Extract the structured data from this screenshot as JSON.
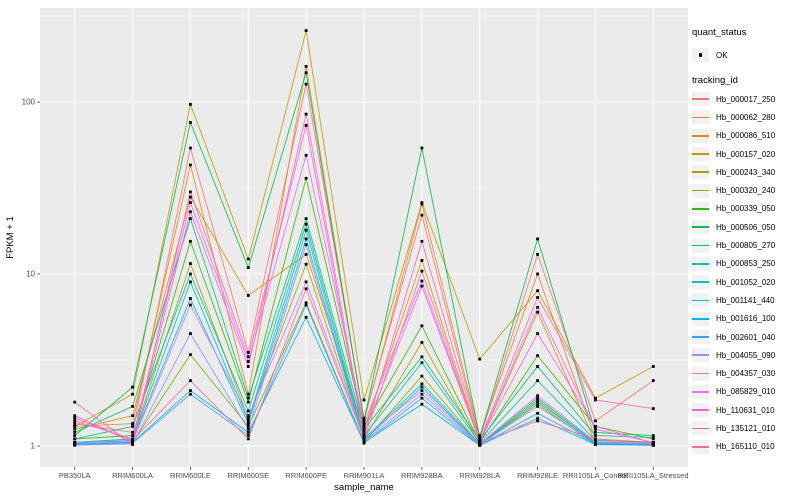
{
  "figure": {
    "background": "#FFFFFF",
    "panel_bg": "#EBEBEB",
    "grid_major_color": "#FFFFFF",
    "grid_minor_color": "#FFFFFF",
    "tick_color": "#333333",
    "axis_text_color": "#4D4D4D",
    "axis_title_color": "#000000",
    "point_color": "#000000",
    "legend_key_bg": "#F2F2F2"
  },
  "axes": {
    "x": {
      "title": "sample_name"
    },
    "y": {
      "title": "FPKM + 1",
      "tick_labels": [
        "1",
        "10",
        "100"
      ]
    }
  },
  "legend": {
    "quant_status": {
      "title": "quant_status",
      "items": [
        {
          "label": "OK",
          "marker": "black-point"
        }
      ]
    },
    "tracking": {
      "title": "tracking_id"
    }
  },
  "chart_data": {
    "type": "line",
    "title": "",
    "xlabel": "sample_name",
    "ylabel": "FPKM + 1",
    "y_scale": "log10",
    "y_ticks": [
      1,
      10,
      100
    ],
    "y_minor_ticks": [
      3.162,
      31.62,
      316.2
    ],
    "ylim_log10": [
      -0.122,
      2.547
    ],
    "grid": true,
    "legend_position": "right",
    "point_marker": "small-black-square",
    "quant_status_all": "OK",
    "categories": [
      "PB350LA",
      "RRIM600LA",
      "RRIM600LE",
      "RRIM600SE",
      "RRIM600PE",
      "RRIM901LA",
      "RRIM928BA",
      "RRIM928LA",
      "RRIM928LE",
      "RRII105LA_Control",
      "RRII105LA_Stressed"
    ],
    "series": [
      {
        "name": "Hb_000017_250",
        "color": "#F8766D",
        "values": [
          1.35,
          1.2,
          54,
          3.5,
          127,
          1.45,
          22,
          1.1,
          13,
          1.4,
          2.4
        ]
      },
      {
        "name": "Hb_000062_280",
        "color": "#EA8331",
        "values": [
          1.3,
          1.35,
          43,
          2.0,
          161,
          1.4,
          25.5,
          1.15,
          10,
          1.1,
          1.05
        ]
      },
      {
        "name": "Hb_000086_510",
        "color": "#D89000",
        "values": [
          1.25,
          1.5,
          28,
          7.5,
          13,
          1.25,
          12,
          1.05,
          6.0,
          1.05,
          1.02
        ]
      },
      {
        "name": "Hb_000157_020",
        "color": "#C09B00",
        "values": [
          1.3,
          2.0,
          97,
          12.2,
          260,
          1.85,
          26,
          3.2,
          8.0,
          1.9,
          2.9
        ]
      },
      {
        "name": "Hb_000243_340",
        "color": "#A3A500",
        "values": [
          1.05,
          1.1,
          11.5,
          1.45,
          11.4,
          1.1,
          4.0,
          1.02,
          1.85,
          1.03,
          1.02
        ]
      },
      {
        "name": "Hb_000320_240",
        "color": "#7CAE00",
        "values": [
          1.02,
          1.05,
          3.4,
          1.3,
          6.8,
          1.05,
          2.55,
          1.02,
          1.75,
          1.02,
          1.01
        ]
      },
      {
        "name": "Hb_000339_050",
        "color": "#39B600",
        "values": [
          1.1,
          1.15,
          15.5,
          1.8,
          36,
          1.3,
          5.0,
          1.05,
          3.35,
          1.3,
          1.1
        ]
      },
      {
        "name": "Hb_000506_050",
        "color": "#00BB4E",
        "values": [
          1.15,
          2.2,
          76,
          10.9,
          148,
          1.4,
          54,
          1.12,
          16,
          1.2,
          1.15
        ]
      },
      {
        "name": "Hb_000805_270",
        "color": "#00BF7D",
        "values": [
          1.2,
          1.7,
          21,
          1.9,
          21,
          1.25,
          3.3,
          1.08,
          2.9,
          1.15,
          1.12
        ]
      },
      {
        "name": "Hb_000853_250",
        "color": "#00C1A3",
        "values": [
          1.1,
          1.3,
          10,
          1.6,
          19.5,
          1.15,
          3.05,
          1.04,
          2.4,
          1.08,
          1.05
        ]
      },
      {
        "name": "Hb_001052_020",
        "color": "#00BFC4",
        "values": [
          1.05,
          1.1,
          9.0,
          1.4,
          18,
          1.1,
          2.3,
          1.03,
          1.9,
          1.05,
          1.03
        ]
      },
      {
        "name": "Hb_001141_440",
        "color": "#00BAE0",
        "values": [
          1.04,
          1.08,
          7.2,
          1.35,
          16,
          1.08,
          2.2,
          1.02,
          1.8,
          1.04,
          1.02
        ]
      },
      {
        "name": "Hb_001616_100",
        "color": "#00B0F6",
        "values": [
          1.03,
          1.05,
          2.1,
          1.2,
          5.6,
          1.05,
          1.75,
          1.01,
          1.45,
          1.02,
          1.01
        ]
      },
      {
        "name": "Hb_002601_040",
        "color": "#35A2FF",
        "values": [
          1.02,
          1.04,
          2.0,
          1.15,
          6.6,
          1.04,
          1.9,
          1.01,
          1.55,
          1.03,
          1.02
        ]
      },
      {
        "name": "Hb_004055_090",
        "color": "#9590FF",
        "values": [
          1.01,
          1.03,
          4.5,
          1.25,
          14.8,
          1.06,
          2.0,
          1.02,
          1.7,
          1.04,
          1.03
        ]
      },
      {
        "name": "Hb_004357_030",
        "color": "#C77CFF",
        "values": [
          1.05,
          1.06,
          6.6,
          1.5,
          9.0,
          1.12,
          2.1,
          1.03,
          1.96,
          1.06,
          1.04
        ]
      },
      {
        "name": "Hb_085829_010",
        "color": "#E76BF3",
        "values": [
          1.4,
          1.1,
          26,
          3.1,
          49,
          1.35,
          9.1,
          1.06,
          6.4,
          1.25,
          1.05
        ]
      },
      {
        "name": "Hb_110631_010",
        "color": "#FA62DB",
        "values": [
          1.5,
          1.05,
          23,
          2.9,
          85,
          1.2,
          8.5,
          1.07,
          4.5,
          1.3,
          1.04
        ]
      },
      {
        "name": "Hb_135121_010",
        "color": "#FF62BC",
        "values": [
          1.8,
          1.02,
          30,
          3.3,
          73,
          1.15,
          15.5,
          1.08,
          7.3,
          1.85,
          1.65
        ]
      },
      {
        "name": "Hb_165110_010",
        "color": "#FF6A98",
        "values": [
          1.45,
          1.08,
          2.4,
          1.1,
          8.2,
          1.1,
          10.4,
          1.05,
          1.4,
          1.1,
          1.02
        ]
      }
    ]
  }
}
